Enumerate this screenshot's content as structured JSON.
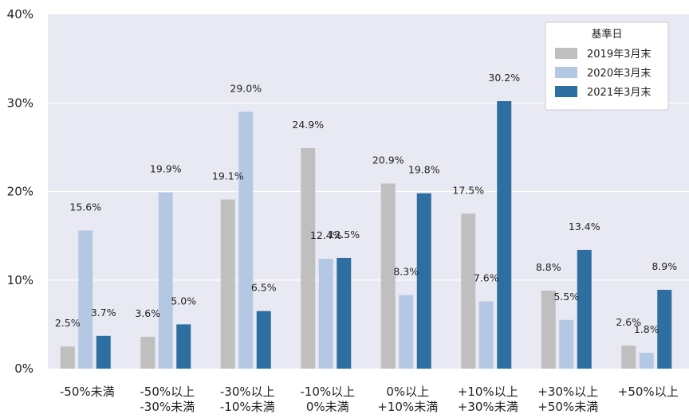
{
  "chart_data": {
    "type": "bar",
    "title": "",
    "xlabel": "",
    "ylabel": "",
    "ylim": [
      0,
      40
    ],
    "yticks": [
      "0%",
      "10%",
      "20%",
      "30%",
      "40%"
    ],
    "ytick_values": [
      0,
      10,
      20,
      30,
      40
    ],
    "grid": true,
    "legend_position": "top-right",
    "legend_title": "基準日",
    "categories": [
      [
        "-50%未満"
      ],
      [
        "-50%以上",
        "-30%未満"
      ],
      [
        "-30%以上",
        "-10%未満"
      ],
      [
        "-10%以上",
        "0%未満"
      ],
      [
        "0%以上",
        "+10%未満"
      ],
      [
        "+10%以上",
        "+30%未満"
      ],
      [
        "+30%以上",
        "+50%未満"
      ],
      [
        "+50%以上"
      ]
    ],
    "series": [
      {
        "name": "2019年3月末",
        "color": "#bfbfbf",
        "values": [
          2.5,
          3.6,
          19.1,
          24.9,
          20.9,
          17.5,
          8.8,
          2.6
        ],
        "labels": [
          "2.5%",
          "3.6%",
          "19.1%",
          "24.9%",
          "20.9%",
          "17.5%",
          "8.8%",
          "2.6%"
        ]
      },
      {
        "name": "2020年3月末",
        "color": "#b4c8e4",
        "values": [
          15.6,
          19.9,
          29.0,
          12.4,
          8.3,
          7.6,
          5.5,
          1.8
        ],
        "labels": [
          "15.6%",
          "19.9%",
          "29.0%",
          "12.4%",
          "8.3%",
          "7.6%",
          "5.5%",
          "1.8%"
        ]
      },
      {
        "name": "2021年3月末",
        "color": "#2e6fa1",
        "values": [
          3.7,
          5.0,
          6.5,
          12.5,
          19.8,
          30.2,
          13.4,
          8.9
        ],
        "labels": [
          "3.7%",
          "5.0%",
          "6.5%",
          "12.5%",
          "19.8%",
          "30.2%",
          "13.4%",
          "8.9%"
        ]
      }
    ],
    "plot_background": "#e9e9f3",
    "grid_color": "#ffffff"
  }
}
